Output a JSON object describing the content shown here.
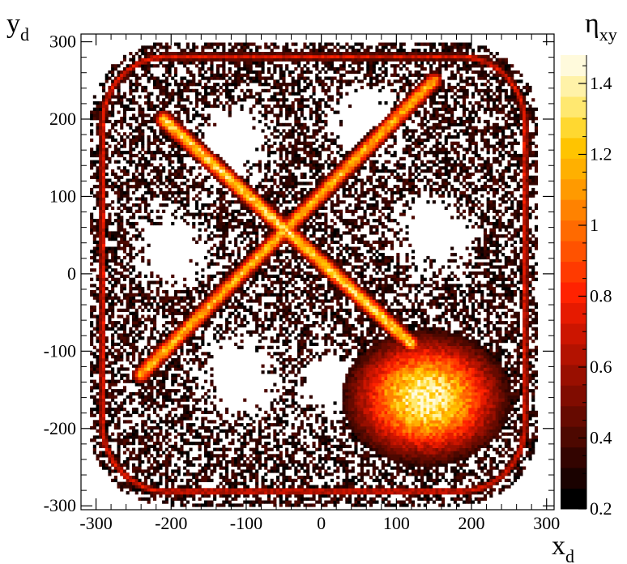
{
  "chart_data": {
    "type": "heatmap",
    "x_label": {
      "main": "x",
      "sub": "d"
    },
    "y_label": {
      "main": "y",
      "sub": "d"
    },
    "z_label": {
      "main": "η",
      "sub": "xy"
    },
    "xlim": [
      -320,
      310
    ],
    "ylim": [
      -305,
      310
    ],
    "zlim": [
      0.2,
      1.48
    ],
    "x_ticks": [
      -300,
      -200,
      -100,
      0,
      100,
      200,
      300
    ],
    "x_tick_labels": [
      "-300",
      "-200",
      "-100",
      "0",
      "100",
      "200",
      "300"
    ],
    "y_ticks": [
      -300,
      -200,
      -100,
      0,
      100,
      200,
      300
    ],
    "y_tick_labels": [
      "-300",
      "-200",
      "-100",
      "0",
      "100",
      "200",
      "300"
    ],
    "z_ticks": [
      0.2,
      0.4,
      0.6,
      0.8,
      1.0,
      1.2,
      1.4
    ],
    "z_tick_labels": [
      "0.2",
      "0.4",
      "0.6",
      "0.8",
      "1",
      "1.2",
      "1.4"
    ],
    "colorscale": [
      "#000000",
      "#1a0200",
      "#330400",
      "#4d0800",
      "#660a00",
      "#800c00",
      "#990f00",
      "#b31200",
      "#cc1500",
      "#e61a00",
      "#ff2200",
      "#ff3a00",
      "#ff5200",
      "#ff6a00",
      "#ff8200",
      "#ff9a00",
      "#ffb000",
      "#ffc400",
      "#ffd830",
      "#ffe870",
      "#fff2a8",
      "#fffadc"
    ],
    "features": {
      "detector_edge": {
        "shape": "rounded-square",
        "half_width": 285,
        "corner_radius": 90,
        "center": [
          -10,
          0
        ]
      },
      "cross_line_1": {
        "from": [
          -240,
          -130
        ],
        "to": [
          150,
          250
        ],
        "peak_eta": 1.2
      },
      "cross_line_2": {
        "from": [
          -210,
          200
        ],
        "to": [
          120,
          -90
        ],
        "peak_eta": 1.3
      },
      "hot_region": {
        "center": [
          140,
          -160
        ],
        "peak_eta": 1.45
      }
    }
  }
}
